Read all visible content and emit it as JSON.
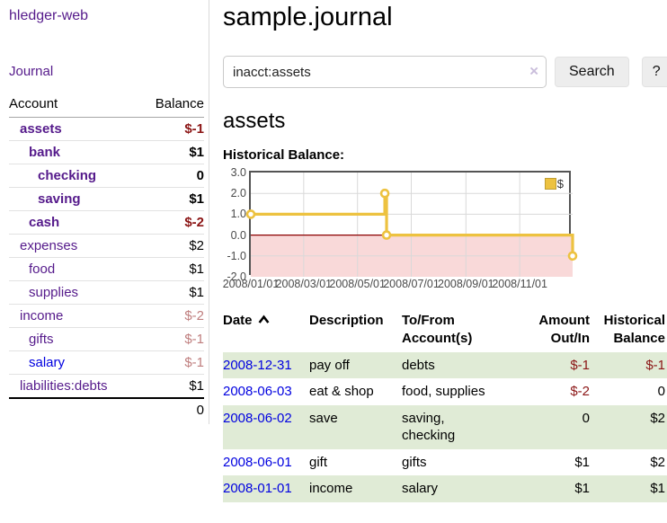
{
  "app": {
    "brand": "hledger-web",
    "nav_journal": "Journal"
  },
  "sidebar": {
    "header": {
      "account": "Account",
      "balance": "Balance"
    },
    "rows": [
      {
        "account": "assets",
        "balance": "$-1"
      },
      {
        "account": "bank",
        "balance": "$1"
      },
      {
        "account": "checking",
        "balance": "0"
      },
      {
        "account": "saving",
        "balance": "$1"
      },
      {
        "account": "cash",
        "balance": "$-2"
      },
      {
        "account": "expenses",
        "balance": "$2"
      },
      {
        "account": "food",
        "balance": "$1"
      },
      {
        "account": "supplies",
        "balance": "$1"
      },
      {
        "account": "income",
        "balance": "$-2"
      },
      {
        "account": "gifts",
        "balance": "$-1"
      },
      {
        "account": "salary",
        "balance": "$-1"
      },
      {
        "account": "liabilities:debts",
        "balance": "$1"
      }
    ],
    "total": "0"
  },
  "header": {
    "title": "sample.journal"
  },
  "search": {
    "value": "inacct:assets",
    "clear_icon": "×",
    "button": "Search",
    "help": "?"
  },
  "account_page": {
    "title": "assets",
    "chart_label": "Historical Balance:"
  },
  "chart_data": {
    "type": "line",
    "title": "Historical Balance:",
    "x_range": [
      "2008-01-01",
      "2008-12-31"
    ],
    "ylim": [
      -2,
      3
    ],
    "y_tick_labels": [
      "3.0",
      "2.0",
      "1.0",
      "0.0",
      "-1.0",
      "-2.0"
    ],
    "x_ticks": [
      "2008/01/01",
      "2008/03/01",
      "2008/05/01",
      "2008/07/01",
      "2008/09/01",
      "2008/11/01"
    ],
    "series": [
      {
        "name": "$",
        "color": "#edc240",
        "step": true,
        "points": [
          [
            "2008-01-01",
            1
          ],
          [
            "2008-06-01",
            2
          ],
          [
            "2008-06-03",
            0
          ],
          [
            "2008-12-31",
            -1
          ]
        ]
      }
    ],
    "legend": {
      "label": "$",
      "position": "top-right"
    },
    "grid": true,
    "negative_region_color": "#f9d9d9",
    "zero_line_color": "#8b0000",
    "grid_color": "#d9d9d9"
  },
  "register": {
    "columns": {
      "date": "Date",
      "description": "Description",
      "accounts": "To/From Account(s)",
      "amount": "Amount Out/In",
      "balance": "Historical Balance"
    },
    "rows": [
      {
        "date": "2008-12-31",
        "description": "pay off",
        "accounts": "debts",
        "amount": "$-1",
        "balance": "$-1"
      },
      {
        "date": "2008-06-03",
        "description": "eat & shop",
        "accounts": "food, supplies",
        "amount": "$-2",
        "balance": "0"
      },
      {
        "date": "2008-06-02",
        "description": "save",
        "accounts": "saving,\nchecking",
        "amount": "0",
        "balance": "$2"
      },
      {
        "date": "2008-06-01",
        "description": "gift",
        "accounts": "gifts",
        "amount": "$1",
        "balance": "$2"
      },
      {
        "date": "2008-01-01",
        "description": "income",
        "accounts": "salary",
        "amount": "$1",
        "balance": "$1"
      }
    ]
  }
}
